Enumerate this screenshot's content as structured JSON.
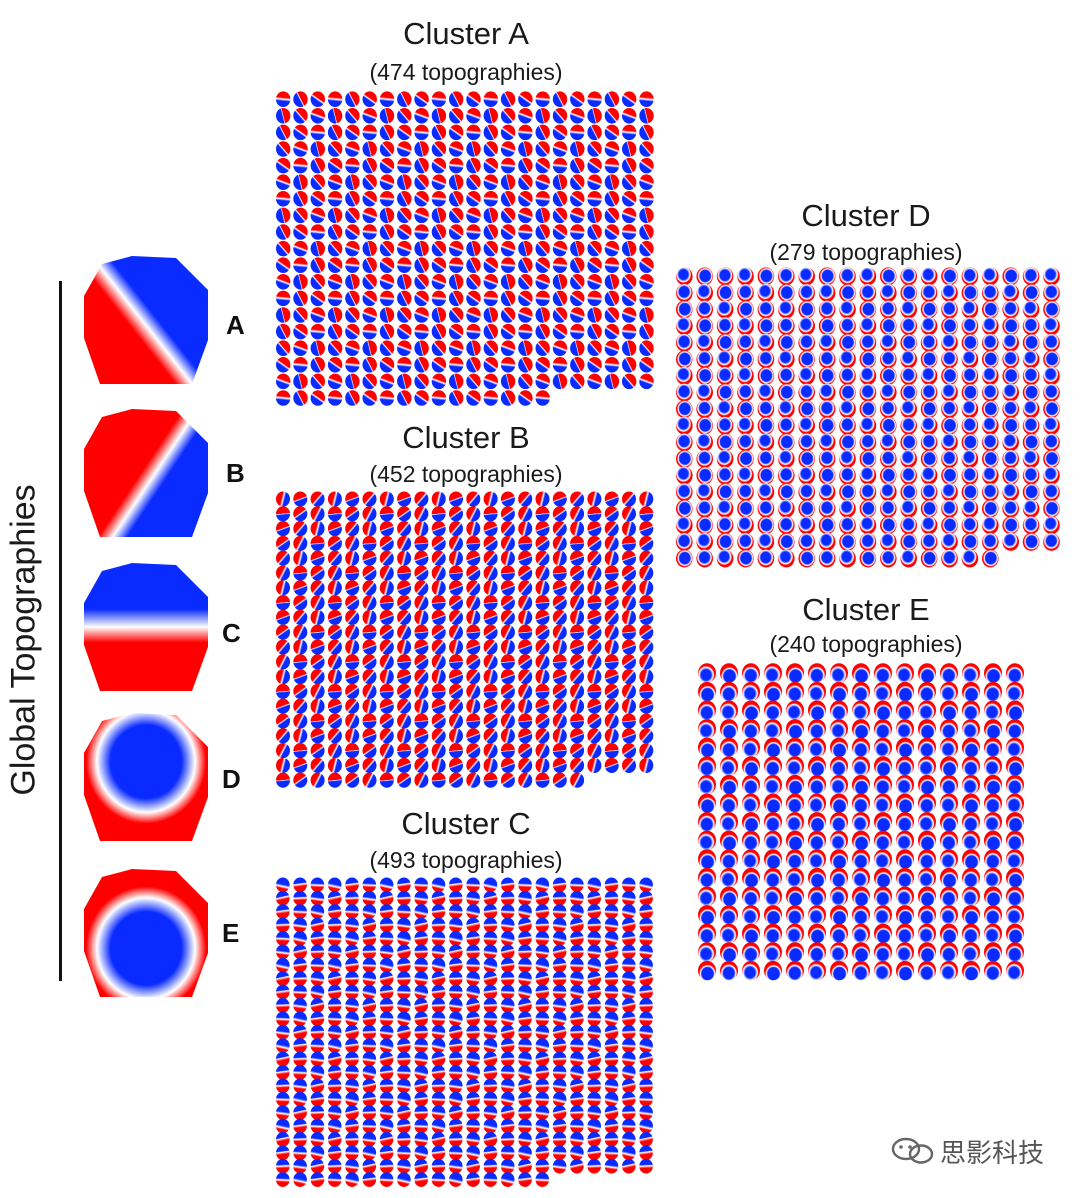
{
  "side_label": "Global Topographies",
  "global_topographies": [
    {
      "letter": "A",
      "pattern": "diag-left",
      "colors": [
        "#ff0000",
        "#0a2bff"
      ]
    },
    {
      "letter": "B",
      "pattern": "diag-right",
      "colors": [
        "#ff0000",
        "#0a2bff"
      ]
    },
    {
      "letter": "C",
      "pattern": "top-bottom",
      "colors": [
        "#0a2bff",
        "#ff0000"
      ]
    },
    {
      "letter": "D",
      "pattern": "center-blue",
      "colors": [
        "#0a2bff",
        "#ff0000"
      ]
    },
    {
      "letter": "E",
      "pattern": "center-blue-low",
      "colors": [
        "#0a2bff",
        "#ff0000"
      ]
    }
  ],
  "clusters": [
    {
      "id": "A",
      "title": "Cluster A",
      "subtitle": "(474 topographies)",
      "style": "diag"
    },
    {
      "id": "B",
      "title": "Cluster B",
      "subtitle": "(452 topographies)",
      "style": "diag2"
    },
    {
      "id": "C",
      "title": "Cluster C",
      "subtitle": "(493 topographies)",
      "style": "horiz"
    },
    {
      "id": "D",
      "title": "Cluster D",
      "subtitle": "(279 topographies)",
      "style": "center"
    },
    {
      "id": "E",
      "title": "Cluster E",
      "subtitle": "(240 topographies)",
      "style": "center-low"
    }
  ],
  "colors": {
    "red": "#ff0000",
    "blue": "#0a2bff",
    "white": "#ffffff"
  },
  "watermark": "思影科技"
}
